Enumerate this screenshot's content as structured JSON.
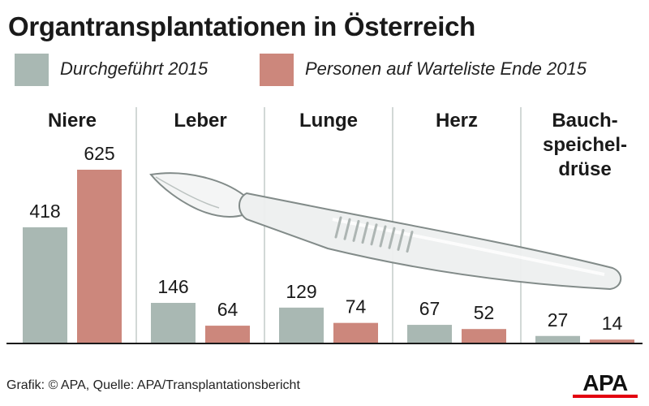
{
  "title": "Organtransplantationen in Österreich",
  "footer": "Grafik: © APA, Quelle: APA/Transplantationsbericht",
  "logo_text": "APA",
  "colors": {
    "performed": "#a9b8b3",
    "waitlist": "#cc877c",
    "divider": "#c4cbc8",
    "baseline": "#1a1a1a",
    "logo_accent": "#e3000f"
  },
  "chart_data": {
    "type": "bar",
    "title": "Organtransplantationen in Österreich",
    "categories": [
      "Niere",
      "Leber",
      "Lunge",
      "Herz",
      "Bauch-speichel-drüse"
    ],
    "category_lines": [
      [
        "Niere"
      ],
      [
        "Leber"
      ],
      [
        "Lunge"
      ],
      [
        "Herz"
      ],
      [
        "Bauch-",
        "speichel-",
        "drüse"
      ]
    ],
    "series": [
      {
        "name": "Durchgeführt 2015",
        "values": [
          418,
          146,
          129,
          67,
          27
        ],
        "color": "#a9b8b3"
      },
      {
        "name": "Personen auf Warteliste Ende 2015",
        "values": [
          625,
          64,
          74,
          52,
          14
        ],
        "color": "#cc877c"
      }
    ],
    "ylim": [
      0,
      625
    ],
    "grid": false,
    "legend": "top-left",
    "data_labels": true,
    "decoration": "scalpel"
  }
}
